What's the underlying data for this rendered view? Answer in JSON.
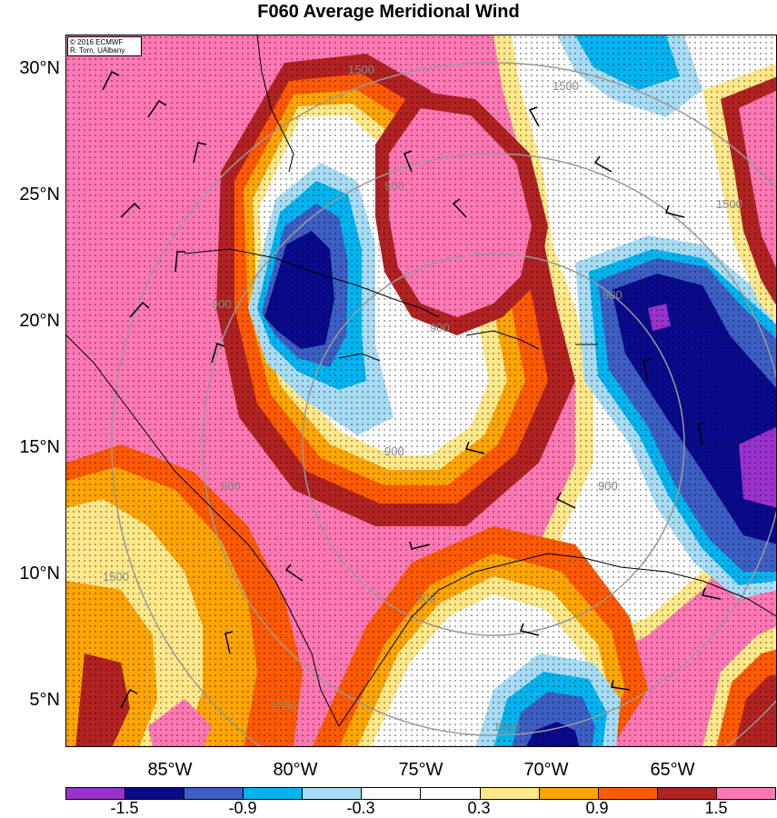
{
  "title": "F060 Average Meridional Wind",
  "credit": {
    "line1": "© 2016 ECMWF",
    "line2": "R. Torn, UAlbany"
  },
  "latitude_labels": [
    "30°N",
    "25°N",
    "20°N",
    "15°N",
    "10°N",
    "5°N"
  ],
  "longitude_labels": [
    "85°W",
    "80°W",
    "75°W",
    "70°W",
    "65°W"
  ],
  "contour_labels": [
    "1500",
    "900"
  ],
  "colorbar": {
    "labels": [
      "-1.5",
      "-0.9",
      "-0.3",
      "0.3",
      "0.9",
      "1.5"
    ],
    "colors": [
      "#9932cc",
      "#0a0a8c",
      "#3d5fc4",
      "#00b4f0",
      "#a8dcf5",
      "#ffffff",
      "#ffffff",
      "#ffe88a",
      "#ffa500",
      "#ff5a00",
      "#b22222",
      "#ff78b4"
    ]
  },
  "map_colors": {
    "pink": "#ff78b4",
    "dark_red": "#b22222",
    "red_orange": "#ff5a00",
    "orange": "#ffa500",
    "light_yellow": "#ffe88a",
    "white": "#ffffff",
    "light_blue": "#a8dcf5",
    "cyan": "#00b4f0",
    "medium_blue": "#3d5fc4",
    "navy": "#0a0a8c",
    "purple": "#9932cc",
    "range_ring": "#999999",
    "coastline": "#000000"
  }
}
